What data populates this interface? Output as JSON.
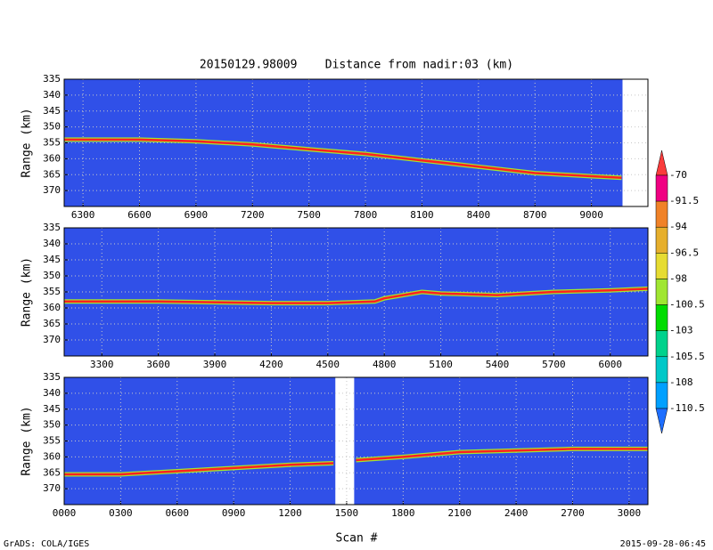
{
  "title": "20150129.98009    Distance from nadir:03 (km)",
  "xlabel": "Scan #",
  "footer_left": "GrADS: COLA/IGES",
  "footer_right": "2015-09-28-06:45",
  "colorbar": {
    "levels": [
      -70,
      -91.5,
      -94,
      -96.5,
      -98,
      -100.5,
      -103,
      -105.5,
      -108,
      -110.5
    ],
    "colors": [
      "#fa3c3c",
      "#f00082",
      "#f08228",
      "#e6af2d",
      "#e6dc32",
      "#a0e632",
      "#00dc00",
      "#00d28c",
      "#00c8c8",
      "#00a0ff",
      "#1e6eff"
    ]
  },
  "chart_data": [
    {
      "type": "line",
      "ylabel": "Range (km)",
      "background": "#3050e8",
      "grid": true,
      "xlim": [
        6200,
        9300
      ],
      "ylim": [
        375,
        335
      ],
      "xticks": [
        6300,
        6600,
        6900,
        7200,
        7500,
        7800,
        8100,
        8400,
        8700,
        9000
      ],
      "yticks": [
        335,
        340,
        345,
        350,
        355,
        360,
        365,
        370
      ],
      "no_data": [
        [
          9165,
          9300
        ]
      ],
      "series": [
        {
          "color": "#ff2020",
          "x": [
            6200,
            6600,
            6900,
            7200,
            7500,
            7800,
            8100,
            8400,
            8700,
            9000,
            9160
          ],
          "values": [
            354,
            354,
            354.5,
            355.5,
            357,
            358.5,
            360.5,
            362.5,
            364.5,
            365.5,
            366
          ]
        }
      ]
    },
    {
      "type": "line",
      "ylabel": "Range (km)",
      "background": "#3050e8",
      "grid": true,
      "xlim": [
        3100,
        6200
      ],
      "ylim": [
        375,
        335
      ],
      "xticks": [
        3300,
        3600,
        3900,
        4200,
        4500,
        4800,
        5100,
        5400,
        5700,
        6000
      ],
      "yticks": [
        335,
        340,
        345,
        350,
        355,
        360,
        365,
        370
      ],
      "no_data": [],
      "series": [
        {
          "color": "#ff2020",
          "x": [
            3100,
            3600,
            4200,
            4500,
            4750,
            4800,
            5000,
            5100,
            5400,
            5700,
            6000,
            6200
          ],
          "values": [
            358,
            358,
            358.5,
            358.5,
            358,
            357,
            355,
            355.5,
            356,
            355,
            354.5,
            354
          ]
        }
      ]
    },
    {
      "type": "line",
      "ylabel": "Range (km)",
      "background": "#3050e8",
      "grid": true,
      "xlim": [
        0,
        3100
      ],
      "ylim": [
        375,
        335
      ],
      "xticks": [
        {
          "value": 0,
          "label": "0000"
        },
        {
          "value": 300,
          "label": "0300"
        },
        {
          "value": 600,
          "label": "0600"
        },
        {
          "value": 900,
          "label": "0900"
        },
        1200,
        1500,
        1800,
        2100,
        2400,
        2700,
        3000
      ],
      "yticks": [
        335,
        340,
        345,
        350,
        355,
        360,
        365,
        370
      ],
      "no_data": [
        [
          1440,
          1540
        ]
      ],
      "series": [
        {
          "color": "#ff2020",
          "x": [
            0,
            300,
            600,
            900,
            1200,
            1430,
            1490,
            1550,
            1800,
            2100,
            2400,
            2700,
            3100
          ],
          "values": [
            365.5,
            365.5,
            364.5,
            363.5,
            362.5,
            362,
            null,
            361,
            360,
            358.5,
            358,
            357.5,
            357.5
          ]
        }
      ]
    }
  ]
}
